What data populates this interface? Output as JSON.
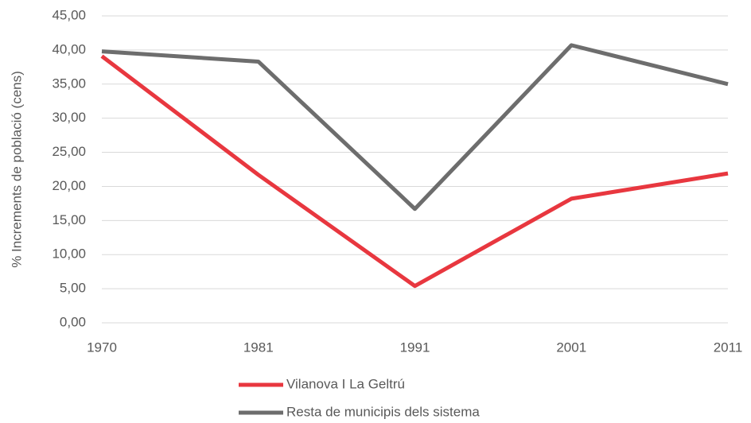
{
  "chart_data": {
    "type": "line",
    "y_label": "% Increments de població (cens)",
    "categories": [
      "1970",
      "1981",
      "1991",
      "2001",
      "2011"
    ],
    "series": [
      {
        "name": "Vilanova I La Geltrú",
        "color": "#e8373f",
        "values": [
          39.1,
          21.7,
          5.4,
          18.2,
          21.9
        ]
      },
      {
        "name": "Resta de municipis dels sistema",
        "color": "#6d6d6d",
        "values": [
          39.8,
          38.3,
          16.7,
          40.7,
          35.0
        ]
      }
    ],
    "ylim": [
      0,
      45
    ],
    "yticks": [
      {
        "value": 0,
        "label": "0,00"
      },
      {
        "value": 5,
        "label": "5,00"
      },
      {
        "value": 10,
        "label": "10,00"
      },
      {
        "value": 15,
        "label": "15,00"
      },
      {
        "value": 20,
        "label": "20,00"
      },
      {
        "value": 25,
        "label": "25,00"
      },
      {
        "value": 30,
        "label": "30,00"
      },
      {
        "value": 35,
        "label": "35,00"
      },
      {
        "value": 40,
        "label": "40,00"
      },
      {
        "value": 45,
        "label": "45,00"
      }
    ],
    "grid": true,
    "legend": "bottom"
  }
}
